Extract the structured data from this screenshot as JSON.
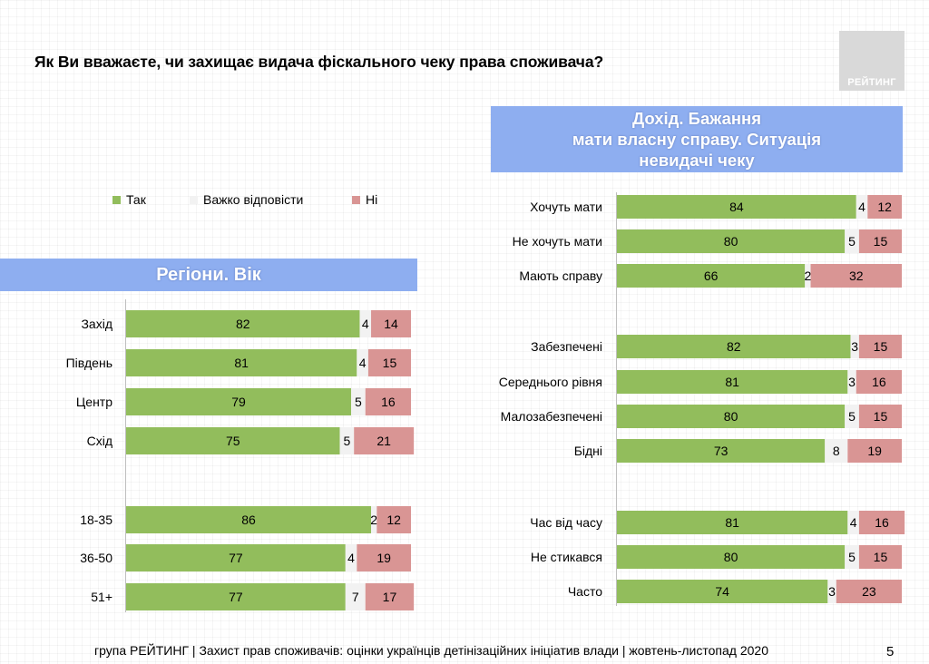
{
  "title": "Як Ви вважаєте, чи захищає видача фіскального чеку права споживача?",
  "logo_text": "РЕЙТИНГ",
  "left_banner": "Регіони. Вік",
  "right_banner": [
    "Дохід. Бажання",
    "мати власну справу. Ситуація",
    "невидачі чеку"
  ],
  "legend": [
    {
      "label": "Так",
      "color": "#92bd5c"
    },
    {
      "label": "Важко відповісти",
      "color": "#f2f2f2"
    },
    {
      "label": "Ні",
      "color": "#d99594"
    }
  ],
  "footer": "група РЕЙТИНГ  | Захист прав споживачів: оцінки українців детінізаційних ініціатив влади  | жовтень-листопад 2020",
  "page_number": "5",
  "chart_data": [
    {
      "type": "bar",
      "orientation": "horizontal-stacked-100",
      "title": "Регіони. Вік",
      "categories": [
        "Захід",
        "Південь",
        "Центр",
        "Схід",
        "18-35",
        "36-50",
        "51+"
      ],
      "series": [
        {
          "name": "Так",
          "values": [
            82,
            81,
            79,
            75,
            86,
            77,
            77
          ]
        },
        {
          "name": "Важко відповісти",
          "values": [
            4,
            4,
            5,
            5,
            2,
            4,
            7
          ]
        },
        {
          "name": "Ні",
          "values": [
            14,
            15,
            16,
            21,
            12,
            19,
            17
          ]
        }
      ],
      "xlim": [
        0,
        100
      ]
    },
    {
      "type": "bar",
      "orientation": "horizontal-stacked-100",
      "title": "Дохід. Бажання мати власну справу. Ситуація невидачі чеку",
      "categories": [
        "Хочуть мати",
        "Не хочуть мати",
        "Мають справу",
        "Забезпечені",
        "Середнього рівня",
        "Малозабезпечені",
        "Бідні",
        "Час від часу",
        "Не стикався",
        "Часто"
      ],
      "series": [
        {
          "name": "Так",
          "values": [
            84,
            80,
            66,
            82,
            81,
            80,
            73,
            81,
            80,
            74
          ]
        },
        {
          "name": "Важко відповісти",
          "values": [
            4,
            5,
            2,
            3,
            3,
            5,
            8,
            4,
            5,
            3
          ]
        },
        {
          "name": "Ні",
          "values": [
            12,
            15,
            32,
            15,
            16,
            15,
            19,
            16,
            15,
            23
          ]
        }
      ],
      "xlim": [
        0,
        100
      ]
    }
  ]
}
